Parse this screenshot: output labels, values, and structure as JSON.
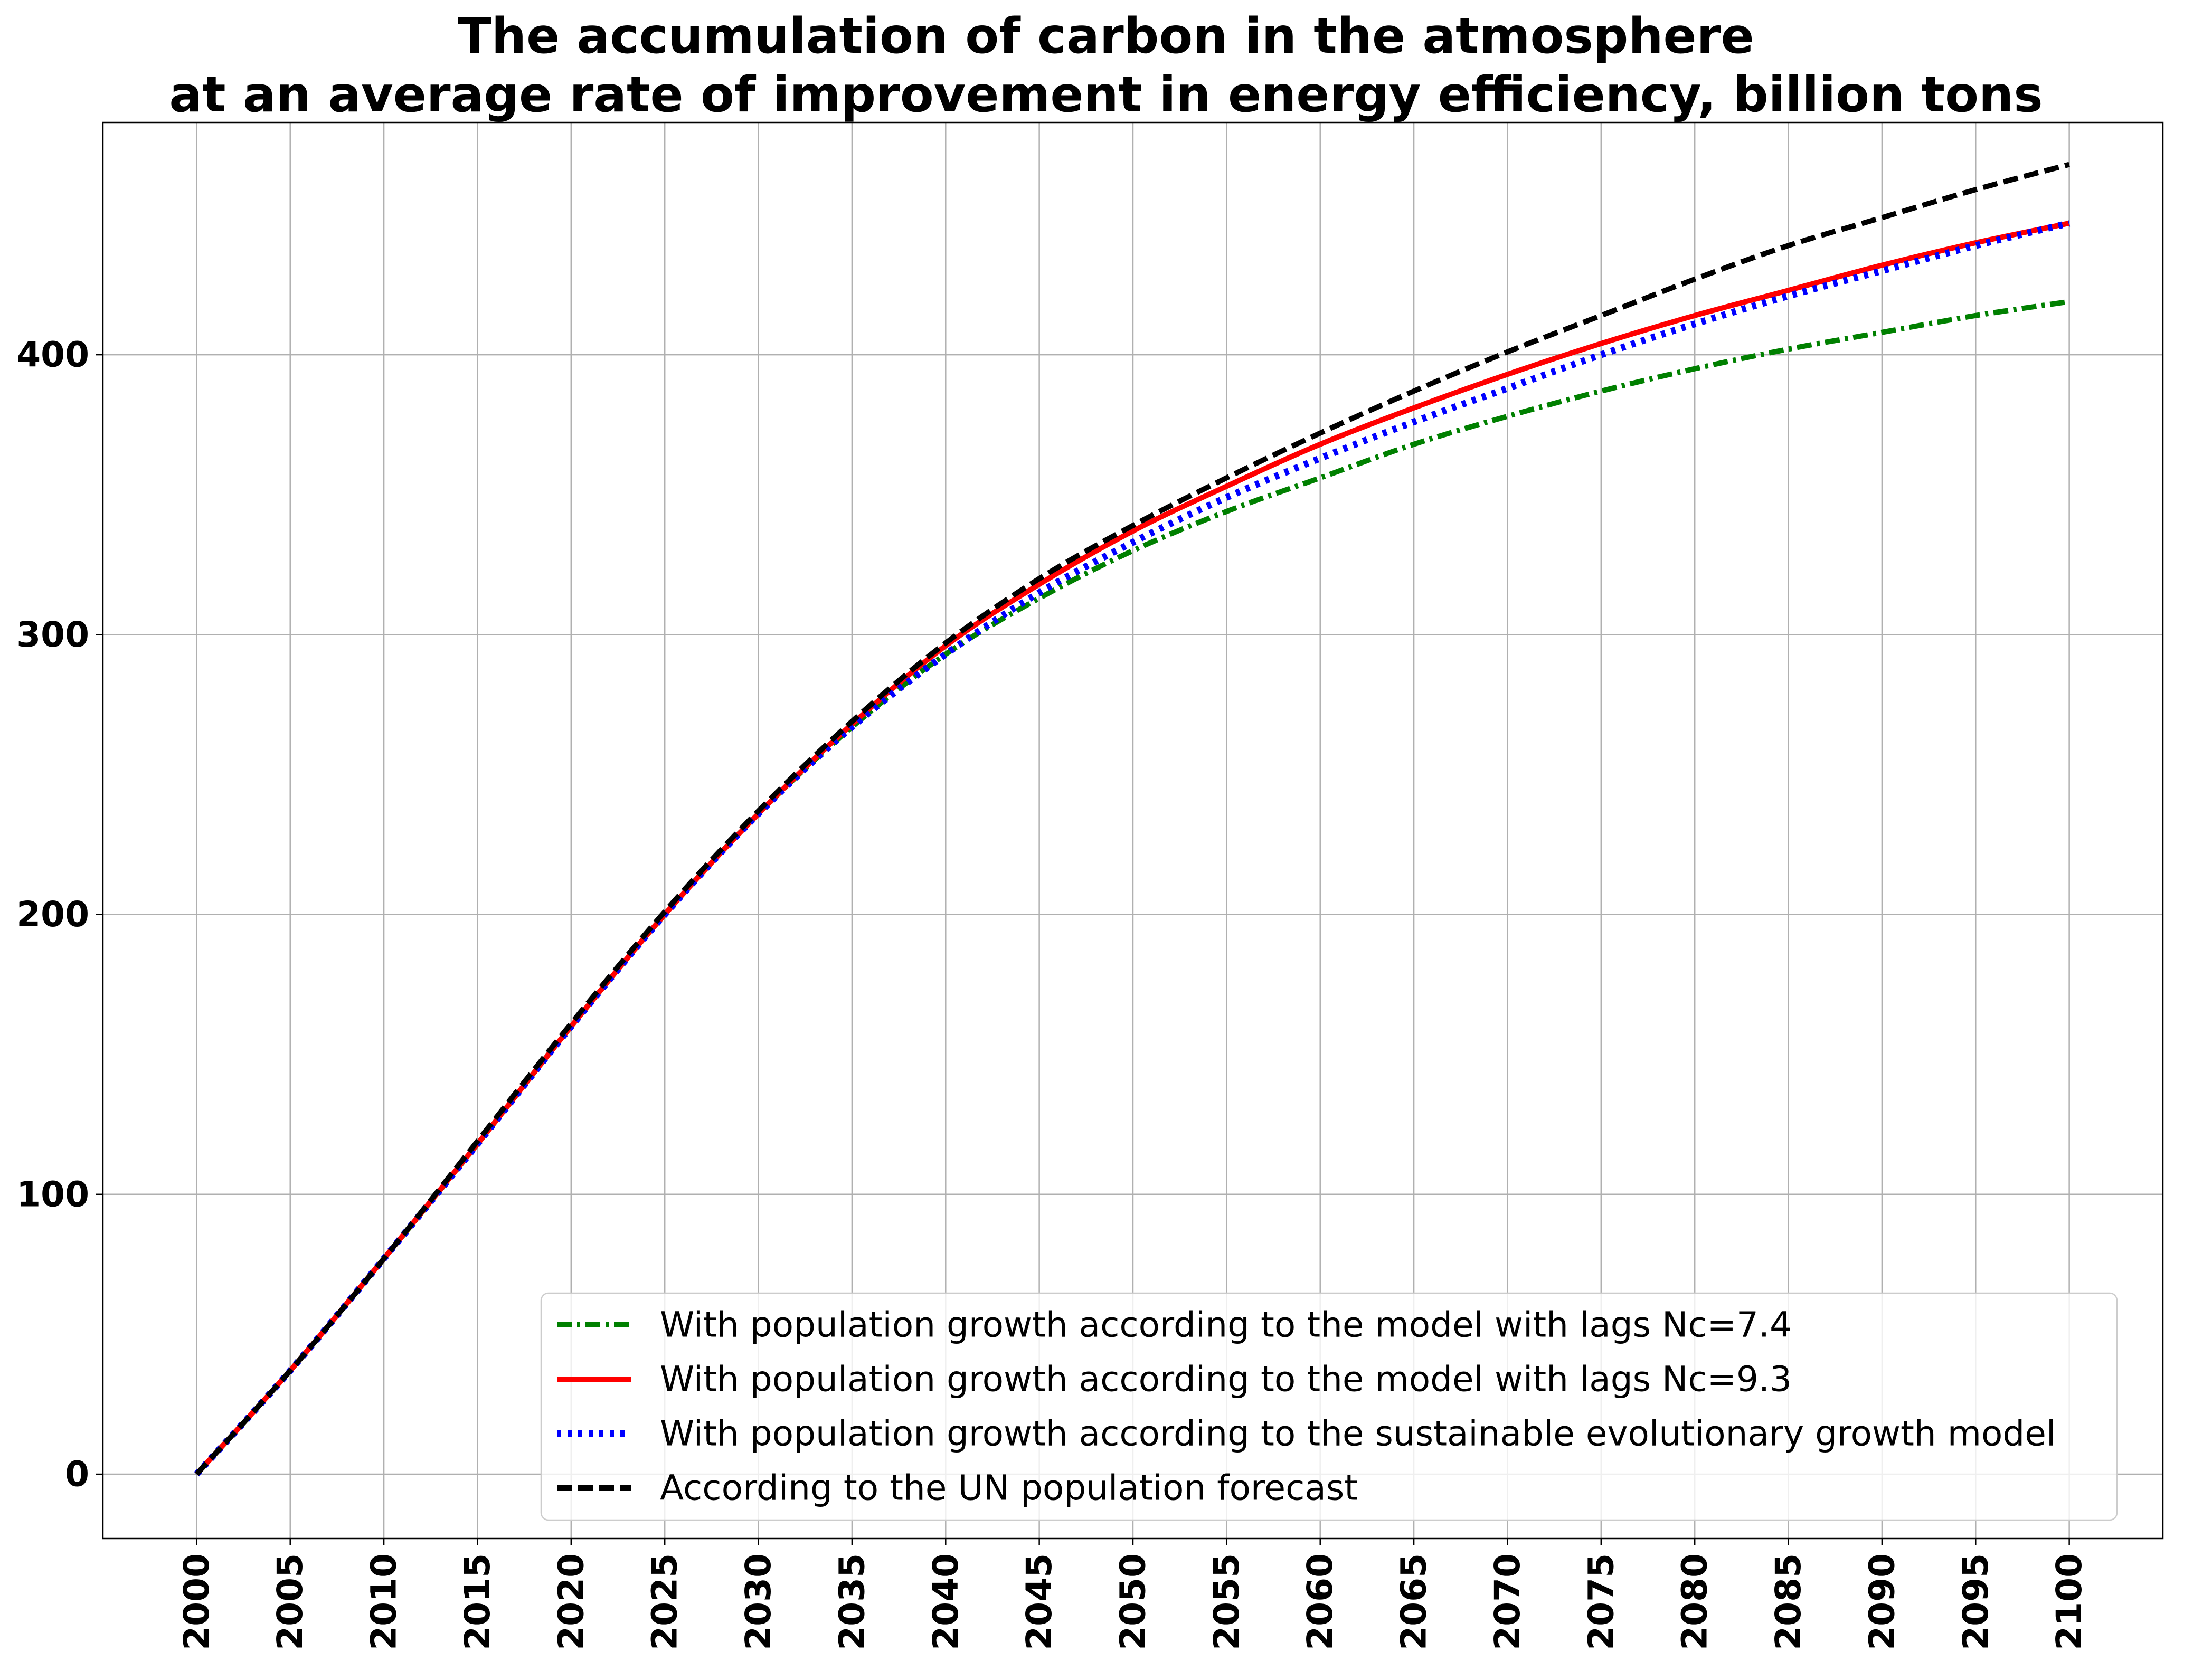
{
  "chart_data": {
    "type": "line",
    "title": "The accumulation of carbon in the atmosphere\nat an average rate of improvement in energy efficiency, billion tons",
    "title_lines": [
      "The accumulation of carbon in the atmosphere",
      "at an average rate of improvement in energy efficiency, billion tons"
    ],
    "xlabel": "",
    "ylabel": "",
    "xlim": [
      1995,
      2105
    ],
    "ylim": [
      -23,
      483
    ],
    "grid": true,
    "legend_position": "lower-right",
    "x_ticks": [
      2000,
      2005,
      2010,
      2015,
      2020,
      2025,
      2030,
      2035,
      2040,
      2045,
      2050,
      2055,
      2060,
      2065,
      2070,
      2075,
      2080,
      2085,
      2090,
      2095,
      2100
    ],
    "y_ticks": [
      0,
      100,
      200,
      300,
      400
    ],
    "x": [
      2000,
      2005,
      2010,
      2015,
      2020,
      2025,
      2030,
      2035,
      2040,
      2045,
      2050,
      2055,
      2060,
      2065,
      2070,
      2075,
      2080,
      2085,
      2090,
      2095,
      2100
    ],
    "series": [
      {
        "name": "With population growth according to the model with lags Nc=7.4",
        "color": "#008000",
        "style": "dashdot",
        "values": [
          0,
          37,
          77,
          118,
          160,
          200,
          236,
          267,
          293,
          313,
          330,
          344,
          356,
          368,
          378,
          387,
          395,
          402,
          408,
          414,
          419
        ]
      },
      {
        "name": "With population growth according to the model with lags Nc=9.3",
        "color": "#ff0000",
        "style": "solid",
        "values": [
          0,
          37,
          77,
          118,
          160,
          200,
          236,
          268,
          296,
          318,
          337,
          353,
          368,
          381,
          393,
          404,
          414,
          423,
          432,
          440,
          447
        ]
      },
      {
        "name": "With population growth according to the sustainable evolutionary growth model",
        "color": "#0000ff",
        "style": "dotted",
        "values": [
          0,
          37,
          77,
          118,
          160,
          200,
          236,
          267,
          293,
          315,
          333,
          349,
          363,
          376,
          388,
          400,
          411,
          421,
          430,
          439,
          447
        ]
      },
      {
        "name": "According to the UN population forecast",
        "color": "#000000",
        "style": "dashed",
        "values": [
          0,
          37,
          77,
          119,
          161,
          201,
          237,
          269,
          297,
          320,
          339,
          356,
          372,
          387,
          401,
          414,
          427,
          439,
          449,
          459,
          468
        ]
      }
    ]
  }
}
